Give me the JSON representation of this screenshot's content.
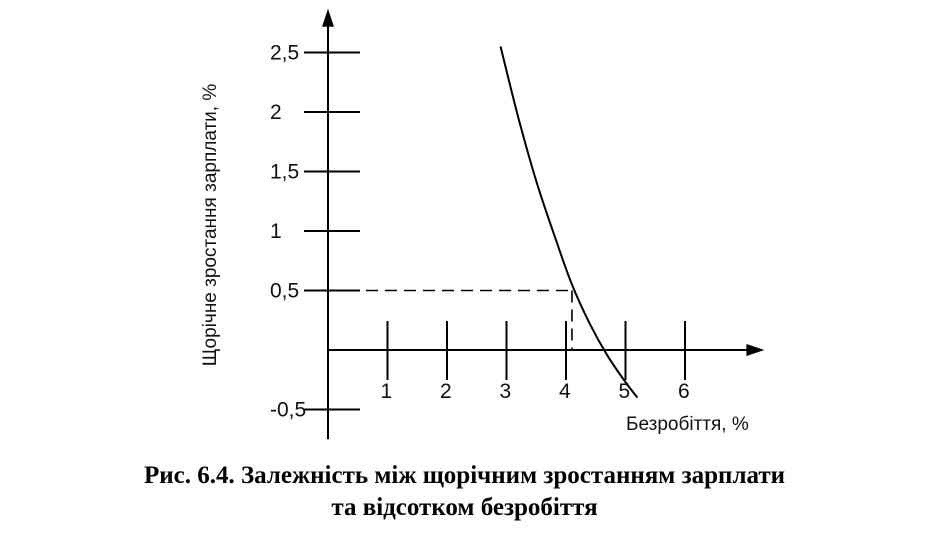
{
  "chart_data": {
    "type": "line",
    "title": "",
    "xlabel": "Безробіття, %",
    "ylabel": "Щорічне зростання зарплати, %",
    "xlim": [
      0,
      7.2
    ],
    "ylim": [
      -0.75,
      2.8
    ],
    "x_ticks": [
      {
        "value": 1,
        "label": "1"
      },
      {
        "value": 2,
        "label": "2"
      },
      {
        "value": 3,
        "label": "3"
      },
      {
        "value": 4,
        "label": "4"
      },
      {
        "value": 5,
        "label": "5"
      },
      {
        "value": 6,
        "label": "6"
      }
    ],
    "y_ticks": [
      {
        "value": 2.5,
        "label": "2,5"
      },
      {
        "value": 2,
        "label": "2"
      },
      {
        "value": 1.5,
        "label": "1,5"
      },
      {
        "value": 1,
        "label": "1"
      },
      {
        "value": 0.5,
        "label": "0,5"
      },
      {
        "value": -0.5,
        "label": "-0,5"
      }
    ],
    "grid": false,
    "legend": "none",
    "series": [
      {
        "x": [
          2.9,
          3.2,
          3.5,
          3.8,
          4.1,
          4.4,
          4.7,
          5.0,
          5.2
        ],
        "y": [
          2.55,
          1.95,
          1.42,
          0.97,
          0.55,
          0.22,
          -0.05,
          -0.27,
          -0.4
        ]
      }
    ],
    "reference_lines": [
      {
        "from": [
          0,
          0.5
        ],
        "to": [
          4.1,
          0.5
        ],
        "style": "dashed"
      },
      {
        "from": [
          4.1,
          0.5
        ],
        "to": [
          4.1,
          0
        ],
        "style": "dashed"
      }
    ]
  },
  "figure": {
    "caption_line_1": "Рис. 6.4. Залежність між щорічним зростанням зарплати",
    "caption_line_2": "та відсотком безробіття"
  }
}
